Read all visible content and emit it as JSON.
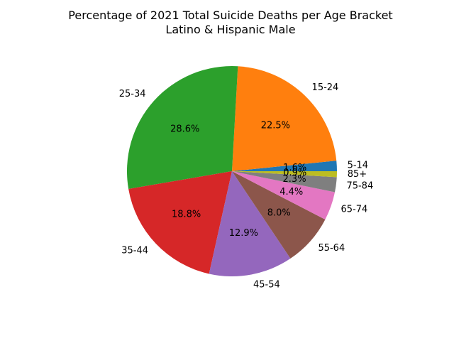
{
  "chart_data": {
    "type": "pie",
    "title": "Percentage of 2021 Total Suicide Deaths per Age Bracket",
    "subtitle": "Latino & Hispanic Male",
    "slices": [
      {
        "label": "5-14",
        "value": 1.6,
        "pct_label": "1.6%",
        "color": "#1f77b4"
      },
      {
        "label": "15-24",
        "value": 22.5,
        "pct_label": "22.5%",
        "color": "#ff7f0e"
      },
      {
        "label": "25-34",
        "value": 28.6,
        "pct_label": "28.6%",
        "color": "#2ca02c"
      },
      {
        "label": "35-44",
        "value": 18.8,
        "pct_label": "18.8%",
        "color": "#d62728"
      },
      {
        "label": "45-54",
        "value": 12.9,
        "pct_label": "12.9%",
        "color": "#9467bd"
      },
      {
        "label": "55-64",
        "value": 8.0,
        "pct_label": "8.0%",
        "color": "#8c564b"
      },
      {
        "label": "65-74",
        "value": 4.4,
        "pct_label": "4.4%",
        "color": "#e377c2"
      },
      {
        "label": "75-84",
        "value": 2.3,
        "pct_label": "2.3%",
        "color": "#7f7f7f"
      },
      {
        "label": "85+",
        "value": 0.9,
        "pct_label": "0.9%",
        "color": "#bcbd22"
      }
    ],
    "start_angle": "0 degrees (3 o'clock)",
    "direction": "counterclockwise",
    "legend": "none"
  }
}
